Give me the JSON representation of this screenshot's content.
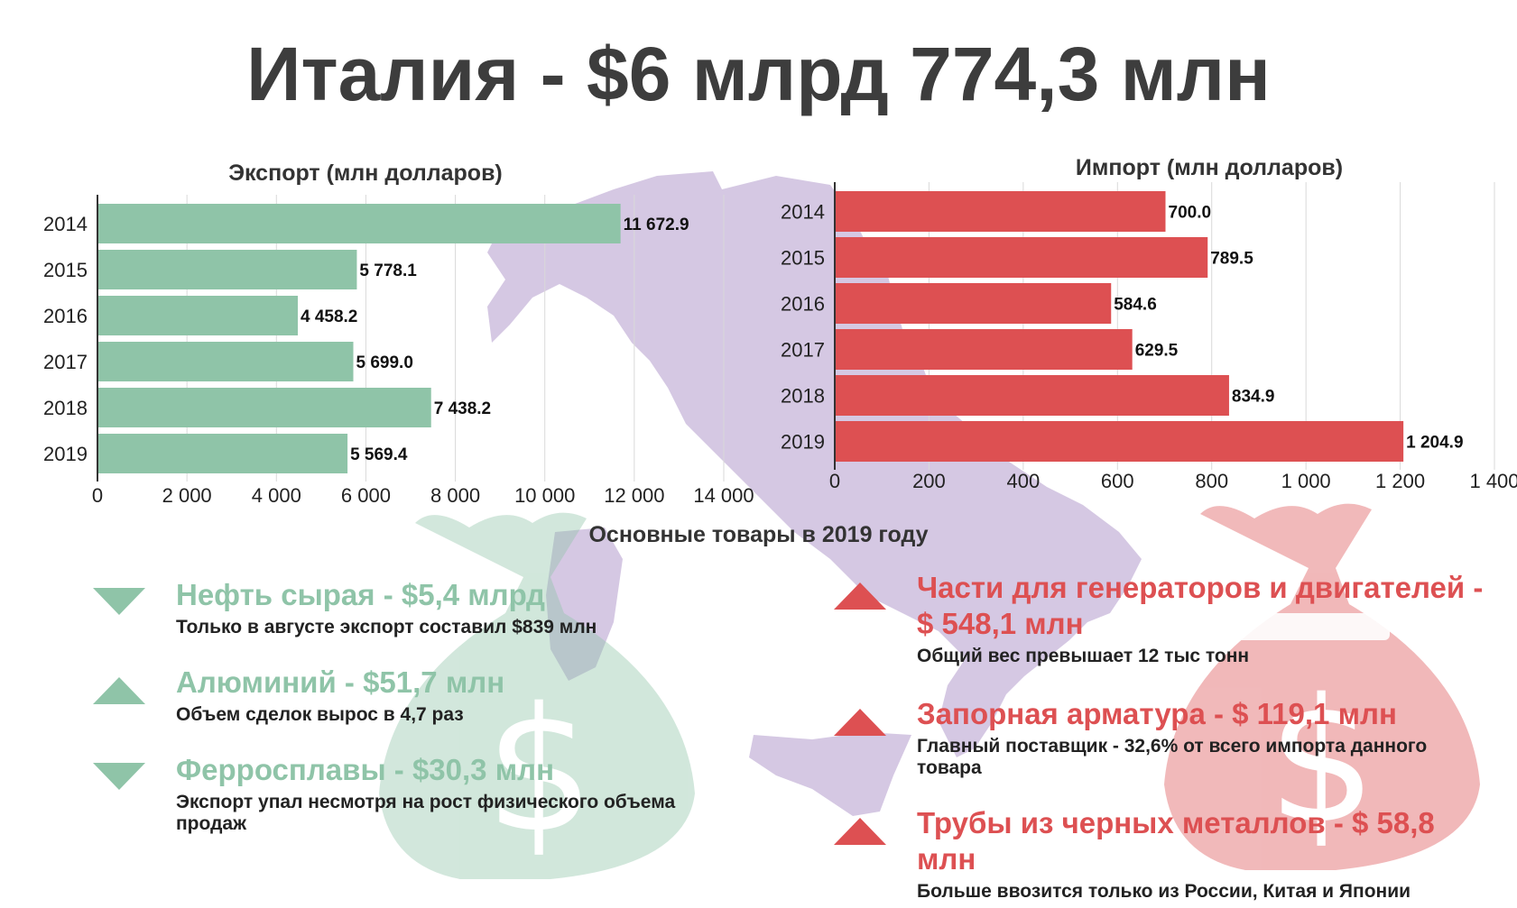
{
  "title": "Италия - $6 млрд 774,3 млн",
  "colors": {
    "export": "#8fc4a8",
    "import": "#dd5052",
    "map": "#d5c8e3",
    "export_text": "#8fc4a8",
    "import_text": "#dd5052"
  },
  "chart_data": [
    {
      "type": "bar",
      "orientation": "horizontal",
      "title": "Экспорт (млн долларов)",
      "categories": [
        "2014",
        "2015",
        "2016",
        "2017",
        "2018",
        "2019"
      ],
      "values": [
        11672.9,
        5778.1,
        4458.2,
        5699.0,
        7438.2,
        5569.4
      ],
      "value_labels": [
        "11 672.9",
        "5 778.1",
        "4 458.2",
        "5 699.0",
        "7 438.2",
        "5 569.4"
      ],
      "xlim": [
        0,
        14000
      ],
      "xticks": [
        "0",
        "2 000",
        "4 000",
        "6 000",
        "8 000",
        "10 000",
        "12 000",
        "14 000"
      ],
      "grid": true
    },
    {
      "type": "bar",
      "orientation": "horizontal",
      "title": "Импорт (млн долларов)",
      "categories": [
        "2014",
        "2015",
        "2016",
        "2017",
        "2018",
        "2019"
      ],
      "values": [
        700.0,
        789.5,
        584.6,
        629.5,
        834.9,
        1204.9
      ],
      "value_labels": [
        "700.0",
        "789.5",
        "584.6",
        "629.5",
        "834.9",
        "1 204.9"
      ],
      "xlim": [
        0,
        1400
      ],
      "xticks": [
        "0",
        "200",
        "400",
        "600",
        "800",
        "1 000",
        "1 200",
        "1 400"
      ],
      "grid": true
    }
  ],
  "goods": {
    "title": "Основные товары в 2019 году",
    "export_items": [
      {
        "direction": "down",
        "head": "Нефть сырая - $5,4 млрд",
        "desc": "Только в августе экспорт составил $839 млн"
      },
      {
        "direction": "up",
        "head": "Алюминий - $51,7 млн",
        "desc": "Объем сделок вырос в 4,7 раз"
      },
      {
        "direction": "down",
        "head": "Ферросплавы - $30,3 млн",
        "desc": "Экспорт упал несмотря на рост физического объема продаж"
      }
    ],
    "import_items": [
      {
        "direction": "up",
        "head": "Части для генераторов и двигателей - $ 548,1 млн",
        "desc": "Общий вес превышает 12 тыс тонн"
      },
      {
        "direction": "up",
        "head": "Запорная арматура - $ 119,1 млн",
        "desc": "Главный поставщик - 32,6% от всего импорта данного товара"
      },
      {
        "direction": "up",
        "head": "Трубы из черных металлов - $ 58,8 млн",
        "desc": "Больше ввозится только из России, Китая и Японии"
      }
    ]
  },
  "icons": {
    "export_bag": "money-bag-icon",
    "import_bag": "money-bag-icon",
    "background_map": "italy-map-silhouette"
  }
}
